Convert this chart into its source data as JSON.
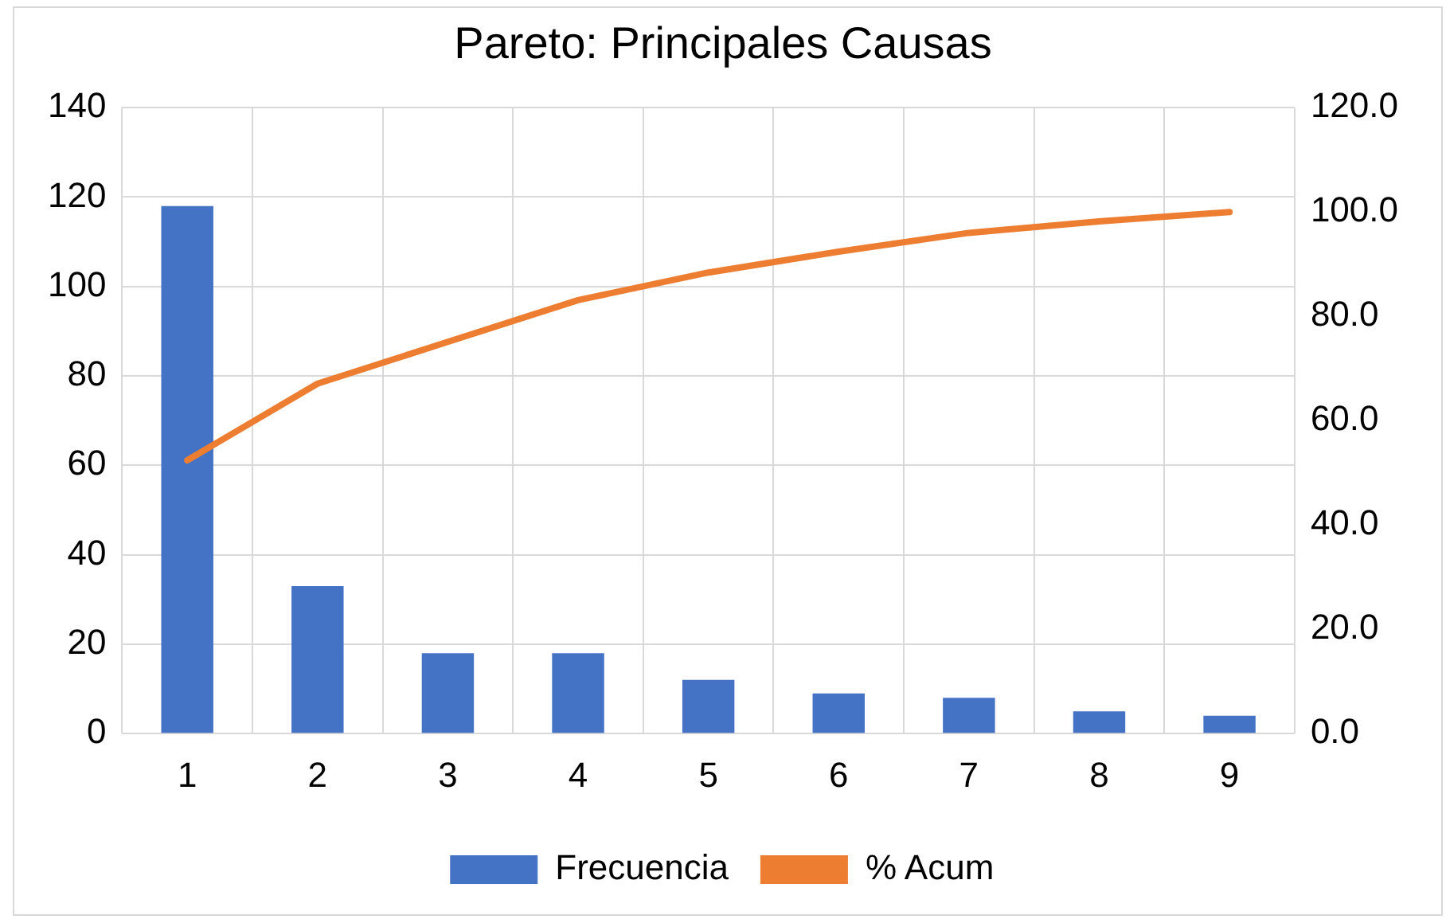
{
  "chart_data": {
    "type": "bar",
    "title": "Pareto: Principales Causas",
    "categories": [
      "1",
      "2",
      "3",
      "4",
      "5",
      "6",
      "7",
      "8",
      "9"
    ],
    "series": [
      {
        "name": "Frecuencia",
        "color": "#4472c4",
        "values": [
          118,
          33,
          18,
          18,
          12,
          9,
          8,
          5,
          4
        ]
      },
      {
        "name": "% Acum",
        "type": "line",
        "axis": "y2",
        "color": "#ed7d31",
        "marker": "none",
        "values": [
          52.4,
          67.1,
          75.1,
          83.1,
          88.4,
          92.4,
          96.0,
          98.2,
          100.0
        ]
      }
    ],
    "ylim": [
      0,
      140
    ],
    "yticks": [
      0,
      20,
      40,
      60,
      80,
      100,
      120,
      140
    ],
    "y2lim": [
      0,
      120
    ],
    "y2ticks": [
      {
        "value": 0,
        "label": "0.0"
      },
      {
        "value": 20,
        "label": "20.0"
      },
      {
        "value": 40,
        "label": "40.0"
      },
      {
        "value": 60,
        "label": "60.0"
      },
      {
        "value": 80,
        "label": "80.0"
      },
      {
        "value": 100,
        "label": "100.0"
      },
      {
        "value": 120,
        "label": "120.0"
      }
    ],
    "grid": true,
    "legend": "bottom"
  }
}
